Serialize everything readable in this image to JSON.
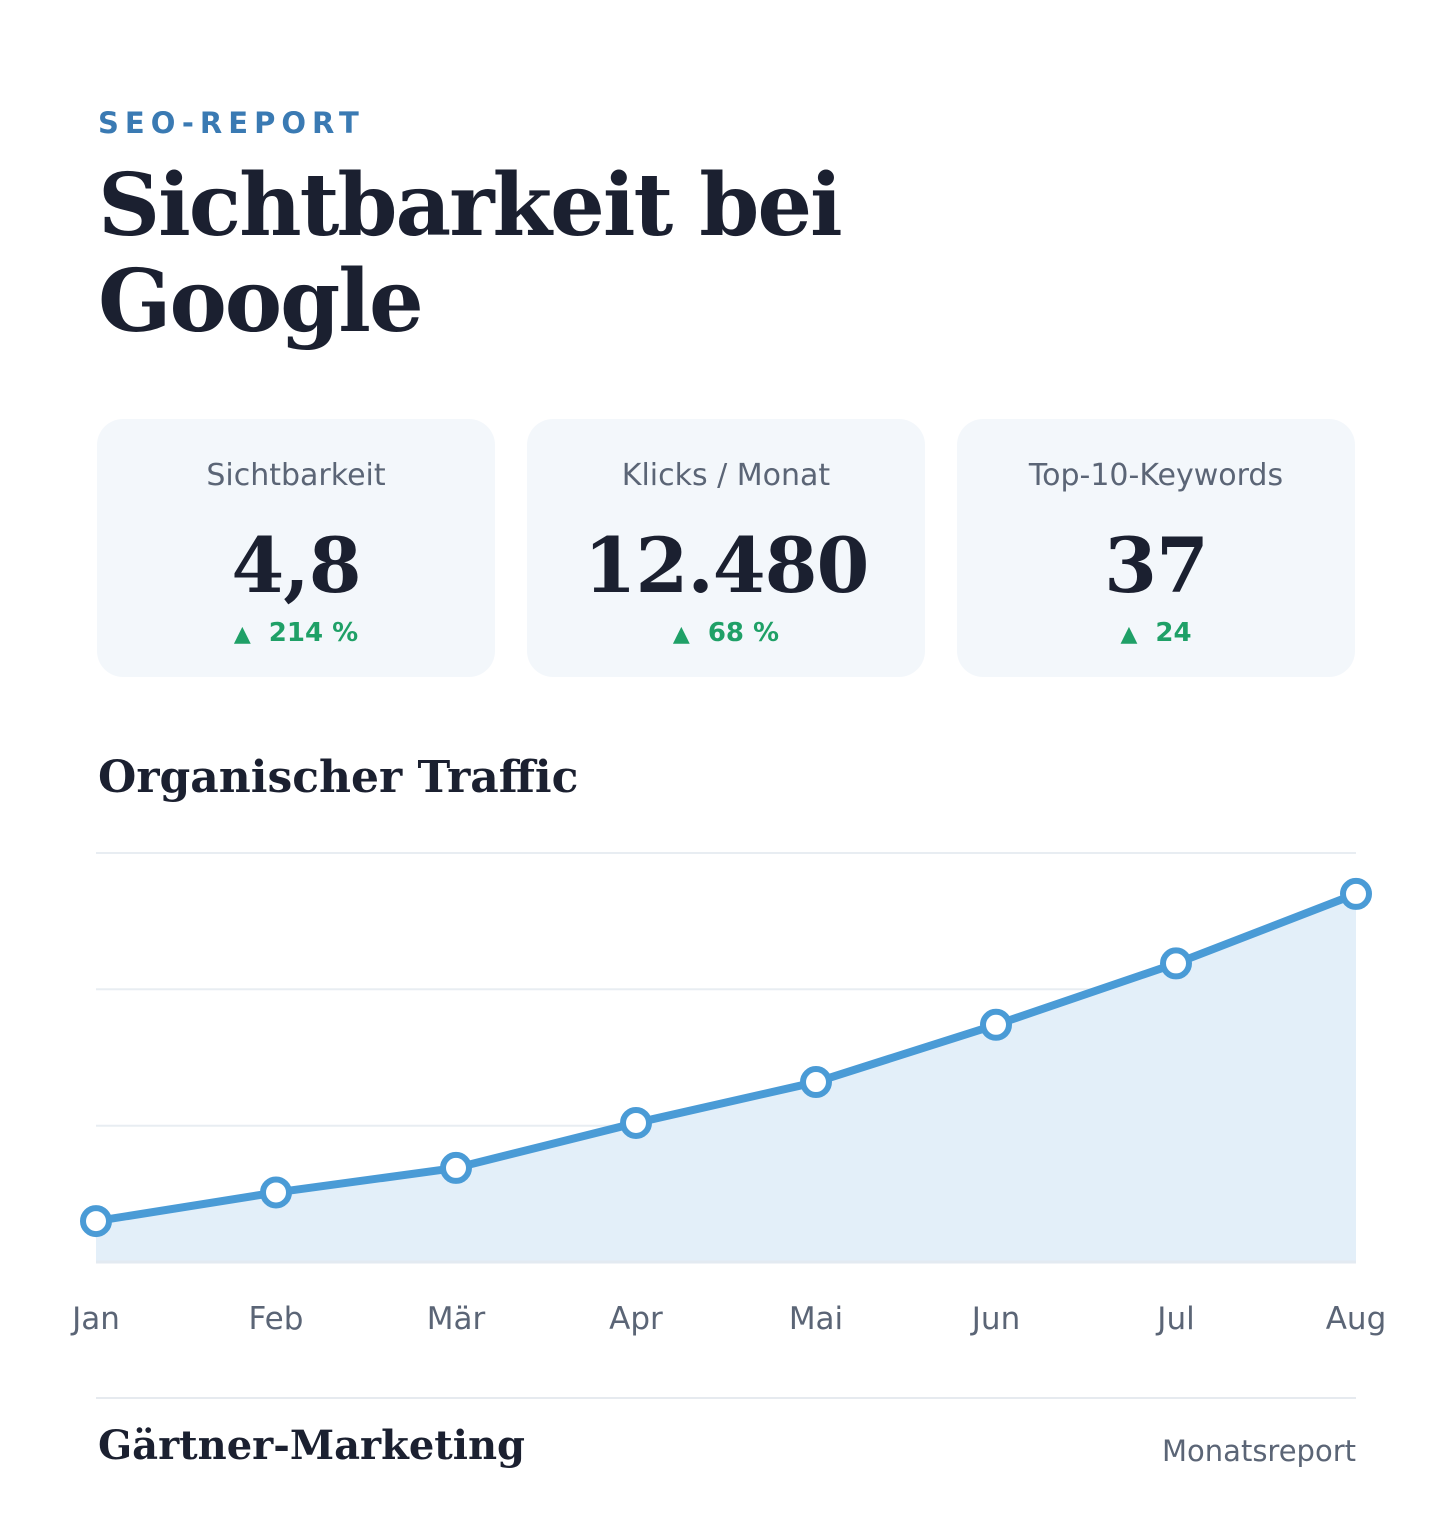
{
  "header": {
    "eyebrow": "SEO-REPORT",
    "title": "Sichtbarkeit bei Google"
  },
  "cards": [
    {
      "label": "Sichtbarkeit",
      "value": "4,8",
      "delta": "214 %"
    },
    {
      "label": "Klicks / Monat",
      "value": "12.480",
      "delta": "68 %"
    },
    {
      "label": "Top-10-Keywords",
      "value": "37",
      "delta": "24"
    }
  ],
  "chart_title": "Organischer Traffic",
  "colors": {
    "accent": "#4a9bd6",
    "area_fill": "#e3eff9",
    "delta_green": "#1fa067",
    "eyebrow_blue": "#3a7ab3"
  },
  "chart_data": {
    "type": "area",
    "categories": [
      "Jan",
      "Feb",
      "Mär",
      "Apr",
      "Mai",
      "Jun",
      "Jul",
      "Aug"
    ],
    "values": [
      10,
      17,
      23,
      34,
      44,
      58,
      73,
      90
    ],
    "ylim": [
      0,
      100
    ],
    "grid": true,
    "title": "Organischer Traffic"
  },
  "footer": {
    "brand": "Gärtner-Marketing",
    "subtitle": "Monatsreport"
  }
}
